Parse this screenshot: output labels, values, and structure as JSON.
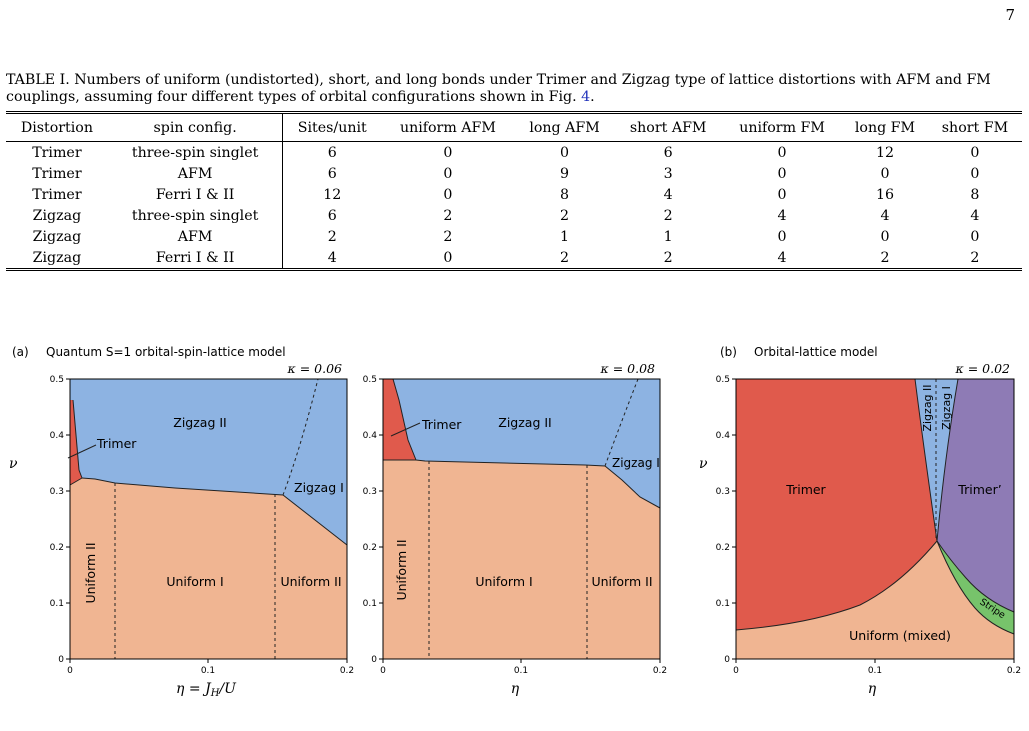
{
  "page_number": "7",
  "caption": "TABLE I. Numbers of uniform (undistorted), short, and long bonds under Trimer and Zigzag type of lattice distortions with AFM and FM couplings, assuming four different types of orbital configurations shown in Fig. ",
  "caption_ref": "4",
  "caption_end": ".",
  "table": {
    "headers": [
      "Distortion",
      "spin config.",
      "Sites/unit",
      "uniform AFM",
      "long AFM",
      "short AFM",
      "uniform FM",
      "long FM",
      "short FM"
    ],
    "rows": [
      [
        "Trimer",
        "three-spin singlet",
        "6",
        "0",
        "0",
        "6",
        "0",
        "12",
        "0"
      ],
      [
        "Trimer",
        "AFM",
        "6",
        "0",
        "9",
        "3",
        "0",
        "0",
        "0"
      ],
      [
        "Trimer",
        "Ferri I & II",
        "12",
        "0",
        "8",
        "4",
        "0",
        "16",
        "8"
      ],
      [
        "Zigzag",
        "three-spin singlet",
        "6",
        "2",
        "2",
        "2",
        "4",
        "4",
        "4"
      ],
      [
        "Zigzag",
        "AFM",
        "2",
        "2",
        "1",
        "1",
        "0",
        "0",
        "0"
      ],
      [
        "Zigzag",
        "Ferri I & II",
        "4",
        "0",
        "2",
        "2",
        "4",
        "2",
        "2"
      ]
    ]
  },
  "figure": {
    "panel_a_label": "(a)",
    "panel_a_title": "Quantum S=1  orbital-spin-lattice model",
    "panel_b_label": "(b)",
    "panel_b_title": "Orbital-lattice model",
    "ylabel": "ν",
    "plot1": {
      "kappa": "κ = 0.06",
      "xlabel": "η = J",
      "xlabel_sub": "H",
      "xlabel_end": "/U",
      "regions": [
        "Zigzag II",
        "Trimer",
        "Zigzag I",
        "Uniform II",
        "Uniform I",
        "Uniform II"
      ]
    },
    "plot2": {
      "kappa": "κ = 0.08",
      "xlabel": "η",
      "regions": [
        "Trimer",
        "Zigzag II",
        "Zigzag I",
        "Uniform II",
        "Uniform I",
        "Uniform II"
      ]
    },
    "plot3": {
      "kappa": "κ = 0.02",
      "xlabel": "η",
      "regions": [
        "Trimer",
        "Zigzag II",
        "Zigzag I",
        "Trimer’",
        "Stripe",
        "Uniform (mixed)"
      ]
    },
    "x_ticks": [
      "0",
      "0.1",
      "0.2"
    ],
    "y_ticks": [
      "0",
      "0.1",
      "0.2",
      "0.3",
      "0.4",
      "0.5"
    ],
    "colors": {
      "uniform": "#f0b592",
      "zigzag": "#8db3e2",
      "trimer": "#e05a4c",
      "trimer_prime": "#8e7bb5",
      "stripe": "#77c36b"
    }
  }
}
